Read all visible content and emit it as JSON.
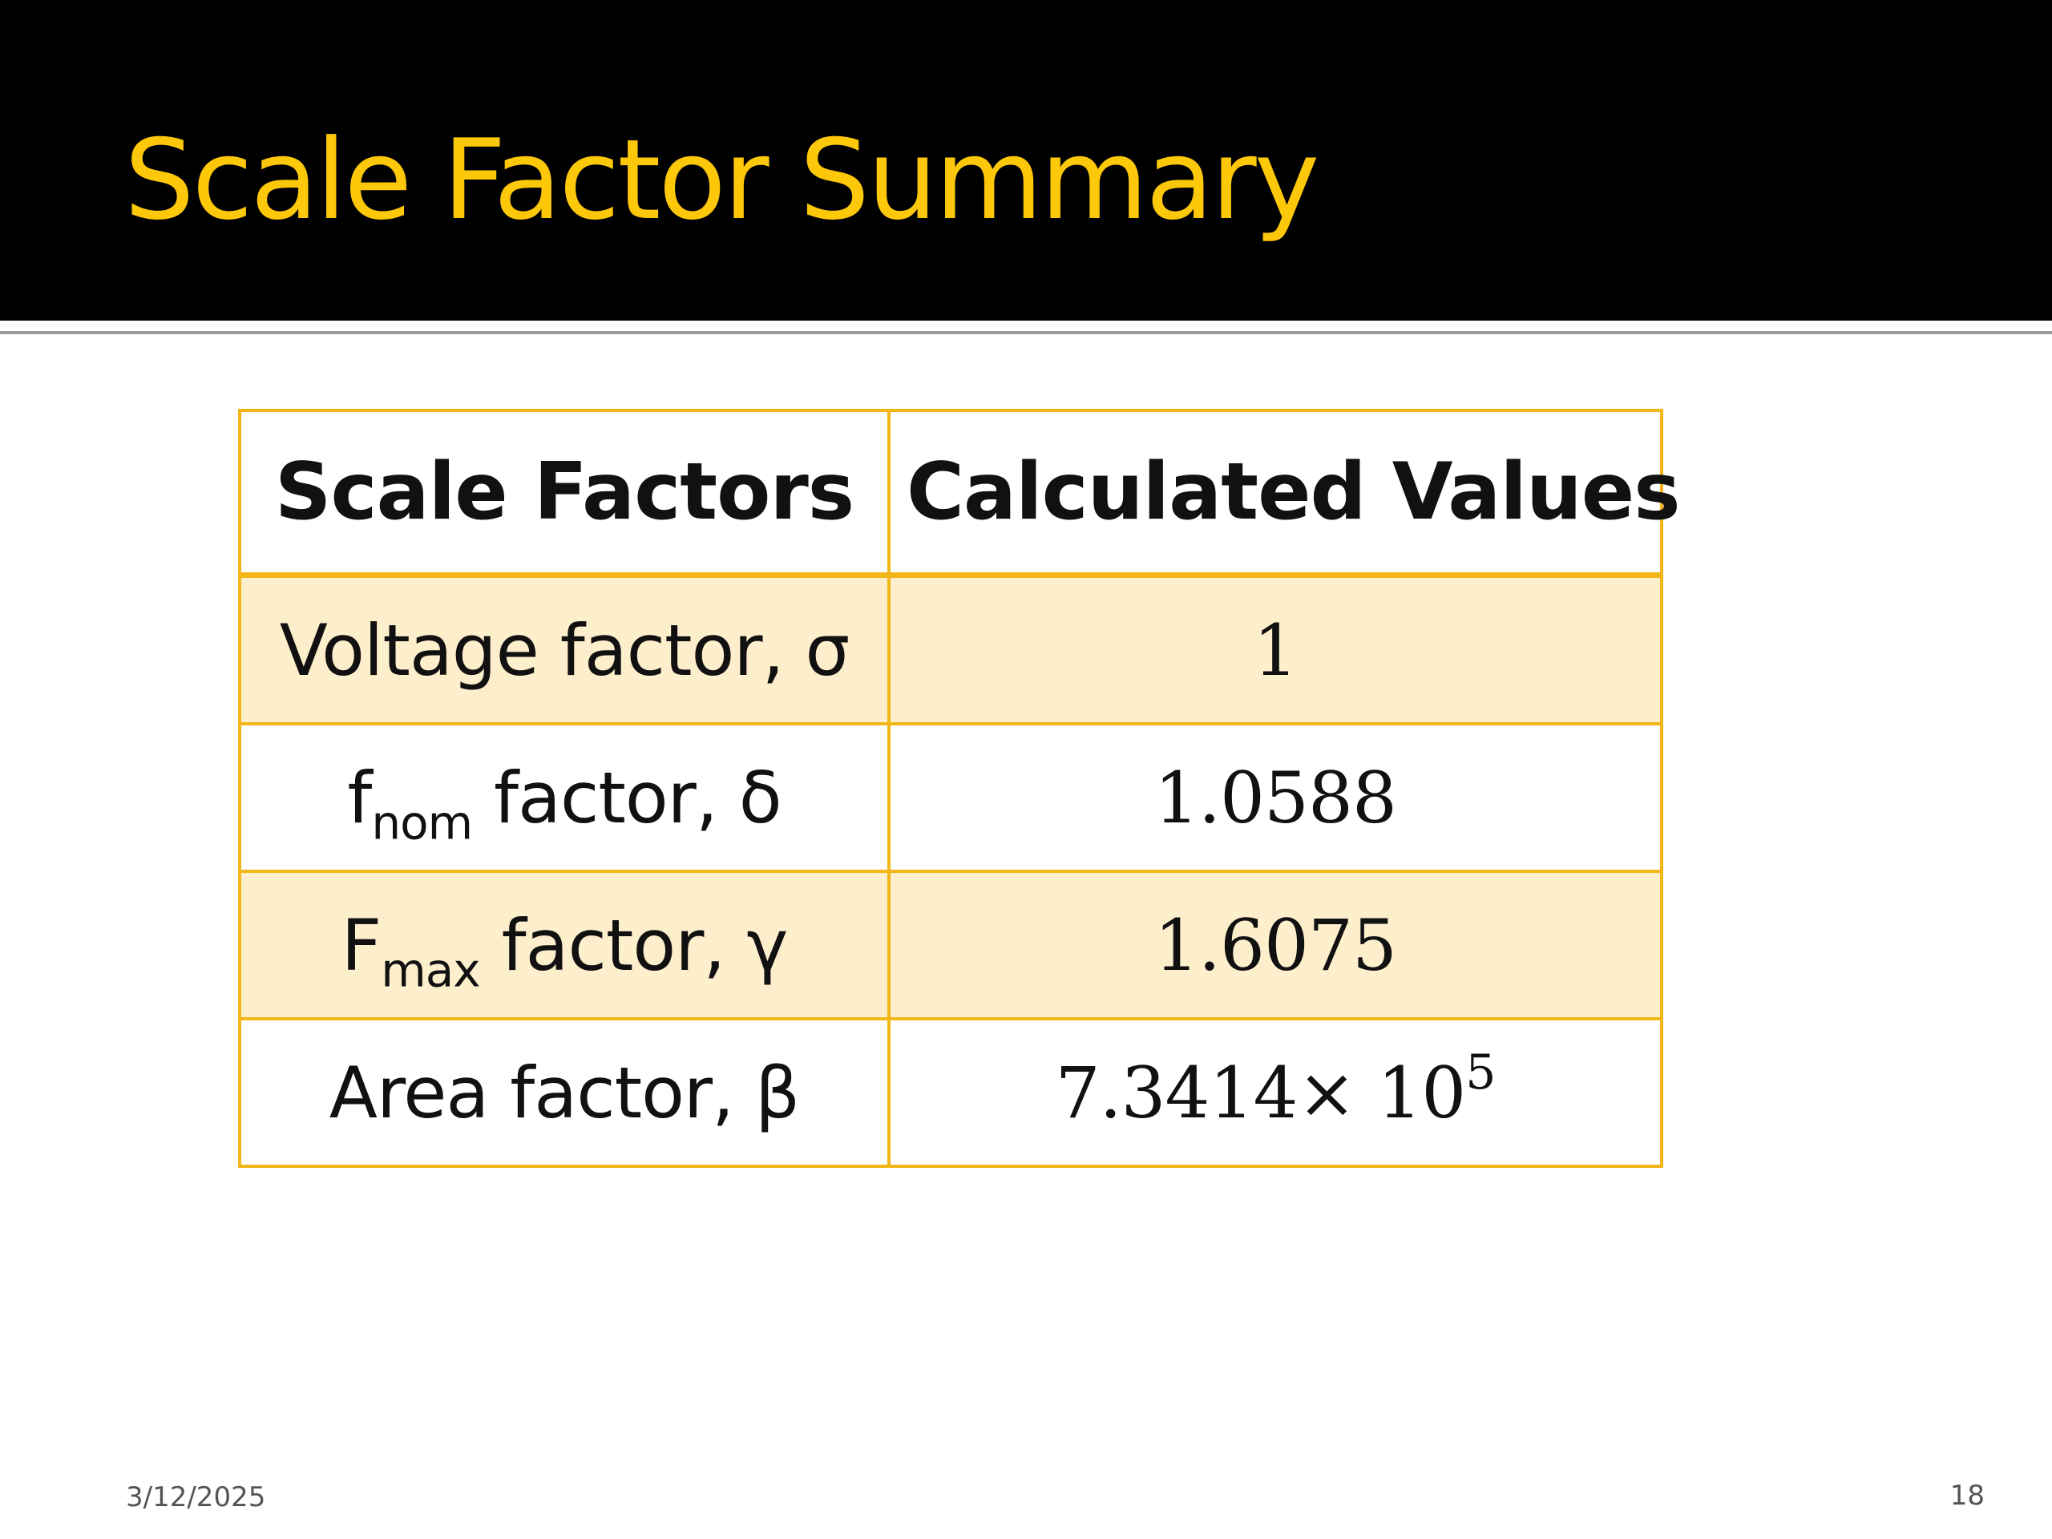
{
  "slide": {
    "title": "Scale Factor Summary",
    "footer_date": "3/12/2025",
    "page_number": "18"
  },
  "table": {
    "headers": {
      "factor": "Scale Factors",
      "value": "Calculated Values"
    },
    "rows": [
      {
        "factor": "Voltage factor, σ",
        "value": "1"
      },
      {
        "factor_prefix": "f",
        "factor_sub": "nom",
        "factor_suffix": " factor, δ",
        "value": "1.0588"
      },
      {
        "factor_prefix": "F",
        "factor_sub": "max",
        "factor_suffix": " factor, γ",
        "value": "1.6075"
      },
      {
        "factor": "Area factor, β",
        "value_mantissa": "7.3414",
        "value_times": "× 10",
        "value_exponent": "5"
      }
    ]
  },
  "colors": {
    "title": "#fdc70a",
    "header_band": "#000000",
    "table_border": "#f2b619",
    "row_band": "#fdefcc",
    "rule": "#9a9a9a"
  }
}
